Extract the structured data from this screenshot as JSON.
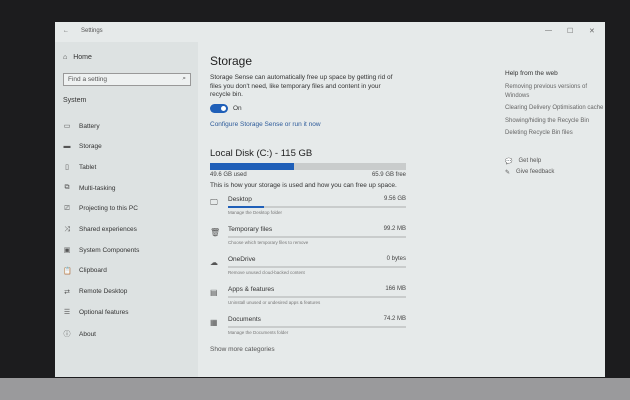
{
  "window": {
    "title": "Settings",
    "back_icon": "arrow-left-icon",
    "controls": [
      "—",
      "☐",
      "✕"
    ]
  },
  "sidebar": {
    "home": "Home",
    "search_placeholder": "Find a setting",
    "section": "System",
    "items": [
      {
        "label": "Battery",
        "icon": "battery-icon"
      },
      {
        "label": "Storage",
        "icon": "storage-icon"
      },
      {
        "label": "Tablet",
        "icon": "tablet-icon"
      },
      {
        "label": "Multi-tasking",
        "icon": "multitasking-icon"
      },
      {
        "label": "Projecting to this PC",
        "icon": "projecting-icon"
      },
      {
        "label": "Shared experiences",
        "icon": "shared-icon"
      },
      {
        "label": "System Components",
        "icon": "components-icon"
      },
      {
        "label": "Clipboard",
        "icon": "clipboard-icon"
      },
      {
        "label": "Remote Desktop",
        "icon": "remote-icon"
      },
      {
        "label": "Optional features",
        "icon": "features-icon"
      },
      {
        "label": "About",
        "icon": "info-icon"
      }
    ]
  },
  "main": {
    "title": "Storage",
    "sense_desc": "Storage Sense can automatically free up space by getting rid of files you don't need, like temporary files and content in your recycle bin.",
    "toggle_label": "On",
    "toggle_on": true,
    "configure_link": "Configure Storage Sense or run it now",
    "disk_title": "Local Disk (C:) - 115 GB",
    "used": "49.6 GB used",
    "free": "65.9 GB free",
    "used_fraction": 0.43,
    "usage_desc": "This is how your storage is used and how you can free up space.",
    "categories": [
      {
        "name": "Desktop",
        "size": "9.56 GB",
        "desc": "Manage the Desktop folder",
        "icon": "monitor-icon",
        "fraction": 0.2
      },
      {
        "name": "Temporary files",
        "size": "99.2 MB",
        "desc": "Choose which temporary files to remove",
        "icon": "trash-icon",
        "fraction": 0.0
      },
      {
        "name": "OneDrive",
        "size": "0 bytes",
        "desc": "Remove unused cloud-backed content",
        "icon": "cloud-icon",
        "fraction": 0.0
      },
      {
        "name": "Apps & features",
        "size": "166 MB",
        "desc": "Uninstall unused or undesired apps & features",
        "icon": "apps-icon",
        "fraction": 0.0
      },
      {
        "name": "Documents",
        "size": "74.2 MB",
        "desc": "Manage the Documents folder",
        "icon": "documents-icon",
        "fraction": 0.0
      }
    ],
    "show_more": "Show more categories"
  },
  "help": {
    "title": "Help from the web",
    "links": [
      "Removing previous versions of Windows",
      "Clearing Delivery Optimisation cache",
      "Showing/hiding the Recycle Bin",
      "Deleting Recycle Bin files"
    ],
    "get_help": "Get help",
    "feedback": "Give feedback"
  }
}
